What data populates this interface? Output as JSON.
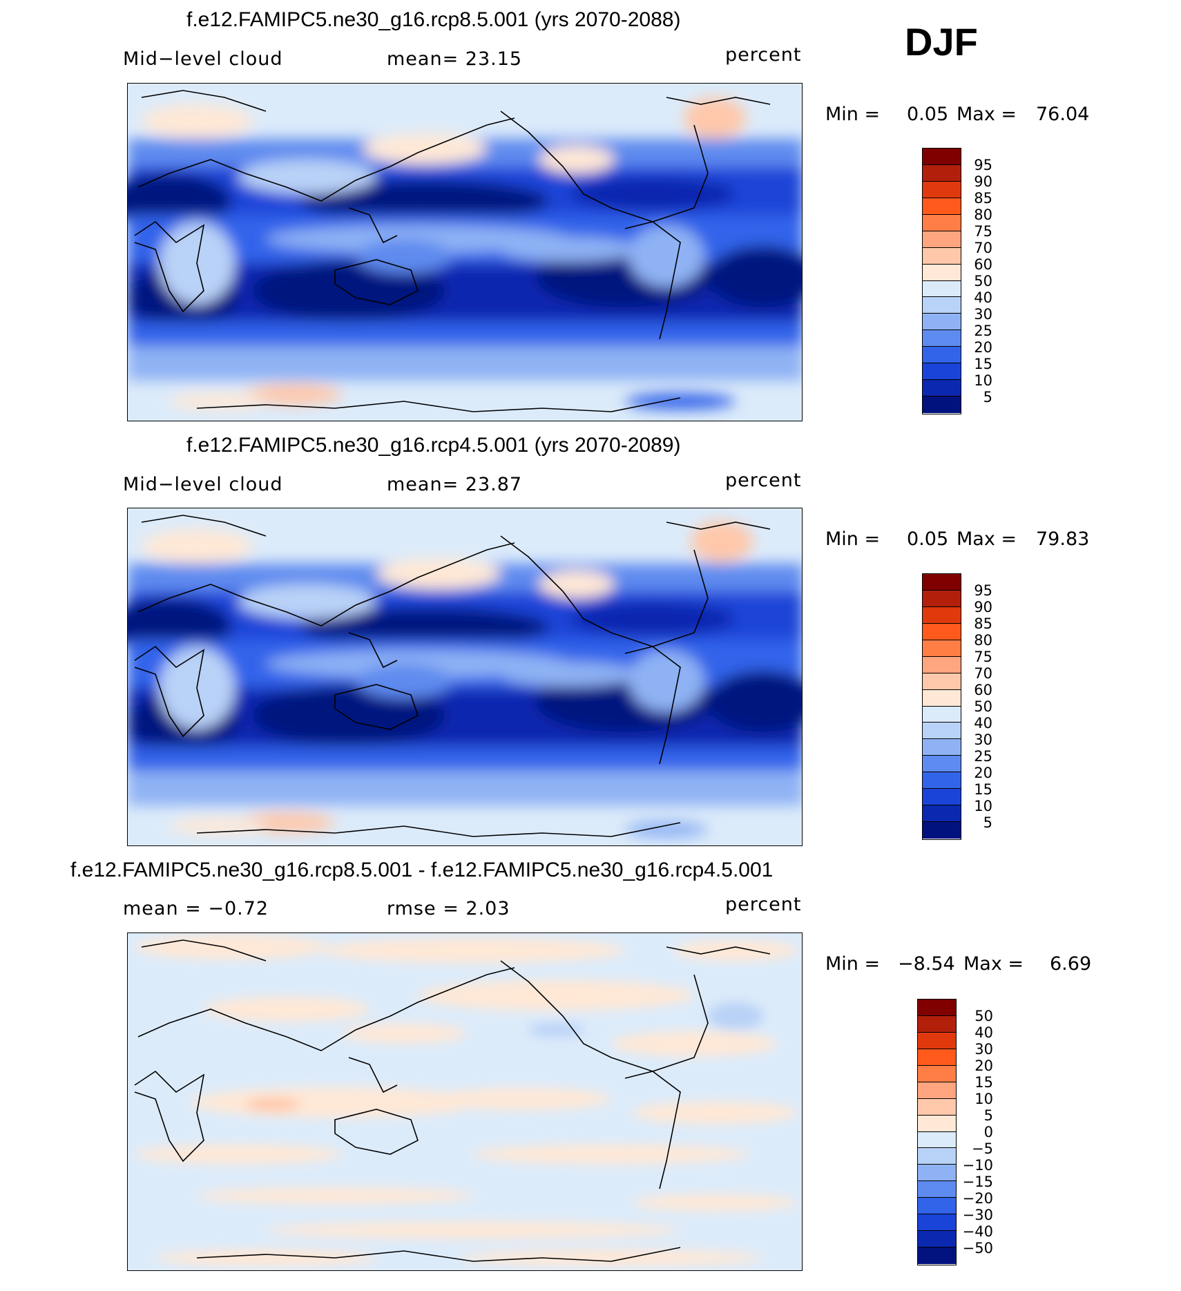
{
  "season": "DJF",
  "panels": [
    {
      "title": "f.e12.FAMIPC5.ne30_g16.rcp8.5.001 (yrs 2070-2088)",
      "left_label": "Mid−level cloud",
      "center_label": "mean=   23.15",
      "units": "percent",
      "min_label": "Min =",
      "min_value": "0.05",
      "max_label": "Max =",
      "max_value": "76.04",
      "colorbar_labels": [
        "95",
        "90",
        "85",
        "80",
        "75",
        "70",
        "60",
        "50",
        "40",
        "30",
        "25",
        "20",
        "15",
        "10",
        "5"
      ]
    },
    {
      "title": "f.e12.FAMIPC5.ne30_g16.rcp4.5.001 (yrs 2070-2089)",
      "left_label": "Mid−level cloud",
      "center_label": "mean=   23.87",
      "units": "percent",
      "min_label": "Min =",
      "min_value": "0.05",
      "max_label": "Max =",
      "max_value": "79.83",
      "colorbar_labels": [
        "95",
        "90",
        "85",
        "80",
        "75",
        "70",
        "60",
        "50",
        "40",
        "30",
        "25",
        "20",
        "15",
        "10",
        "5"
      ]
    },
    {
      "title": "f.e12.FAMIPC5.ne30_g16.rcp8.5.001 - f.e12.FAMIPC5.ne30_g16.rcp4.5.001",
      "left_label": "mean =   −0.72",
      "center_label": "rmse =     2.03",
      "units": "percent",
      "min_label": "Min =",
      "min_value": "−8.54",
      "max_label": "Max =",
      "max_value": "6.69",
      "colorbar_labels": [
        "50",
        "40",
        "30",
        "20",
        "15",
        "10",
        "5",
        "0",
        "−5",
        "−10",
        "−15",
        "−20",
        "−30",
        "−40",
        "−50"
      ]
    }
  ],
  "colors": {
    "abs_scale": [
      "#800000",
      "#b2200c",
      "#e0390e",
      "#ff5a1c",
      "#ff7e45",
      "#ffa57f",
      "#ffc8aa",
      "#ffe8d6",
      "#dcebfa",
      "#b9d2f7",
      "#8fb2f4",
      "#5e8bef",
      "#3264ea",
      "#1a44d8",
      "#0b28b0",
      "#01127f"
    ],
    "diff_scale": [
      "#800000",
      "#b2200c",
      "#e0390e",
      "#ff5a1c",
      "#ff7e45",
      "#ffa57f",
      "#ffc8aa",
      "#ffe8d6",
      "#dcebfa",
      "#b9d2f7",
      "#8fb2f4",
      "#5e8bef",
      "#3264ea",
      "#1a44d8",
      "#0b28b0",
      "#01127f"
    ]
  }
}
